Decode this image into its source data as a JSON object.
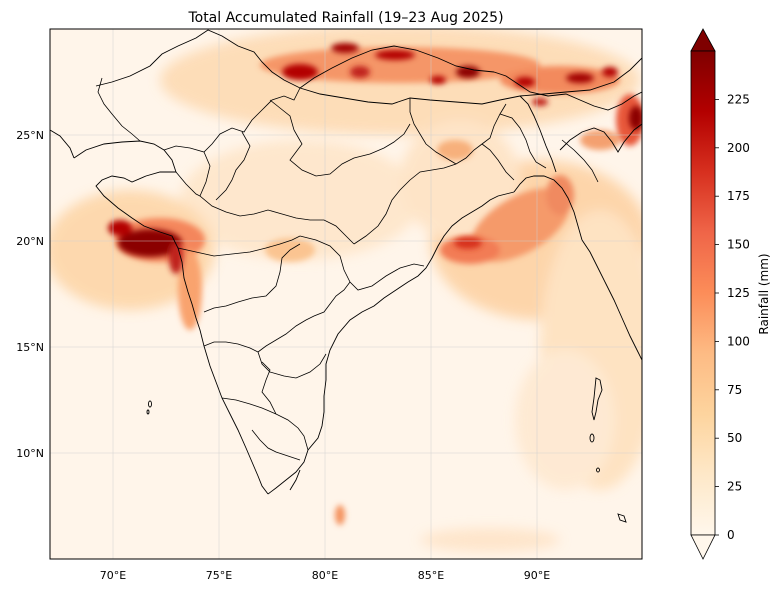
{
  "map": {
    "title": "Total Accumulated Rainfall (19–23 Aug 2025)",
    "lon_ticks": [
      "70°E",
      "75°E",
      "80°E",
      "85°E",
      "90°E"
    ],
    "lat_ticks": [
      "25°N",
      "20°N",
      "15°N",
      "10°N"
    ],
    "extent": {
      "lon": [
        67,
        95
      ],
      "lat": [
        5,
        30
      ]
    }
  },
  "colorbar": {
    "label": "Rainfall (mm)",
    "ticks": [
      "0",
      "25",
      "50",
      "75",
      "100",
      "125",
      "150",
      "175",
      "200",
      "225"
    ],
    "range": [
      0,
      250
    ],
    "extend": "both",
    "colormap": "OrRd",
    "colors": [
      "#fff7ec",
      "#fee8c8",
      "#fdd49e",
      "#fdbb84",
      "#fc8d59",
      "#ef6548",
      "#d7301f",
      "#b30000",
      "#7f0000"
    ]
  }
}
